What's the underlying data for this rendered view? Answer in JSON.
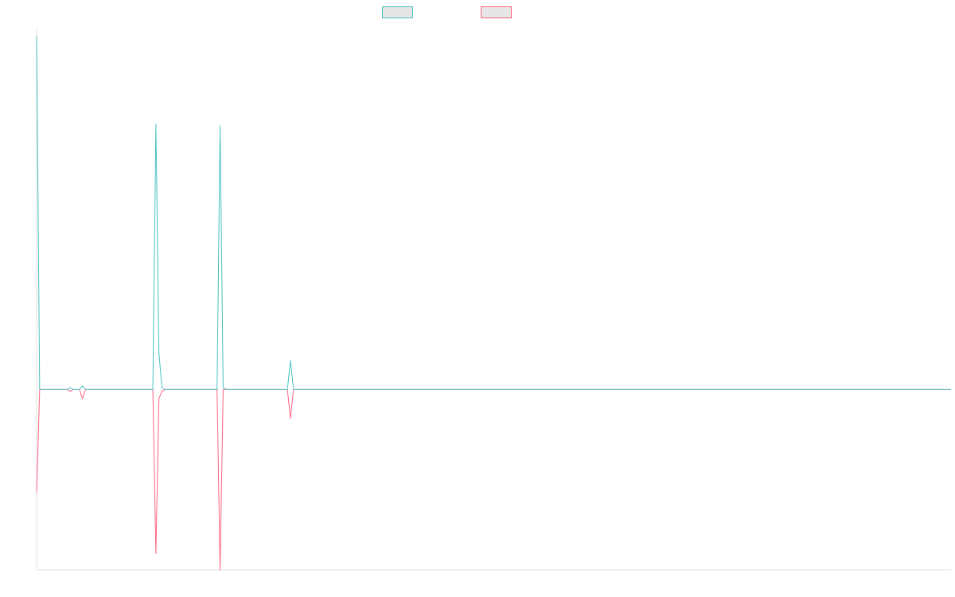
{
  "chart_data": {
    "type": "line",
    "title": "",
    "xlabel": "",
    "ylabel": "",
    "legend_position": "top",
    "grid": false,
    "ylim": [
      -1.0,
      2.0
    ],
    "x_count": 300,
    "baseline": 0,
    "series": [
      {
        "color": "#4bc0c0",
        "points": [
          {
            "x": 0,
            "y": 1.96
          },
          {
            "x": 1,
            "y": 0.0
          },
          {
            "x": 10,
            "y": 0.0
          },
          {
            "x": 11,
            "y": 0.01
          },
          {
            "x": 12,
            "y": 0.0
          },
          {
            "x": 14,
            "y": 0.0
          },
          {
            "x": 15,
            "y": 0.02
          },
          {
            "x": 16,
            "y": 0.0
          },
          {
            "x": 38,
            "y": 0.0
          },
          {
            "x": 39,
            "y": 1.47
          },
          {
            "x": 40,
            "y": 0.2
          },
          {
            "x": 41,
            "y": 0.01
          },
          {
            "x": 42,
            "y": 0.0
          },
          {
            "x": 59,
            "y": 0.0
          },
          {
            "x": 60,
            "y": 1.46
          },
          {
            "x": 61,
            "y": 0.01
          },
          {
            "x": 62,
            "y": 0.0
          },
          {
            "x": 82,
            "y": 0.0
          },
          {
            "x": 83,
            "y": 0.16
          },
          {
            "x": 84,
            "y": 0.0
          },
          {
            "x": 299,
            "y": 0.0
          }
        ]
      },
      {
        "color": "#ff6384",
        "points": [
          {
            "x": 0,
            "y": -0.57
          },
          {
            "x": 1,
            "y": 0.0
          },
          {
            "x": 10,
            "y": 0.0
          },
          {
            "x": 11,
            "y": -0.01
          },
          {
            "x": 12,
            "y": 0.0
          },
          {
            "x": 14,
            "y": 0.0
          },
          {
            "x": 15,
            "y": -0.05
          },
          {
            "x": 16,
            "y": 0.0
          },
          {
            "x": 38,
            "y": 0.0
          },
          {
            "x": 39,
            "y": -0.91
          },
          {
            "x": 40,
            "y": -0.05
          },
          {
            "x": 41,
            "y": -0.01
          },
          {
            "x": 42,
            "y": 0.0
          },
          {
            "x": 59,
            "y": 0.0
          },
          {
            "x": 60,
            "y": -1.0
          },
          {
            "x": 61,
            "y": 0.0
          },
          {
            "x": 82,
            "y": 0.0
          },
          {
            "x": 83,
            "y": -0.16
          },
          {
            "x": 84,
            "y": 0.0
          },
          {
            "x": 299,
            "y": 0.0
          }
        ]
      }
    ]
  }
}
